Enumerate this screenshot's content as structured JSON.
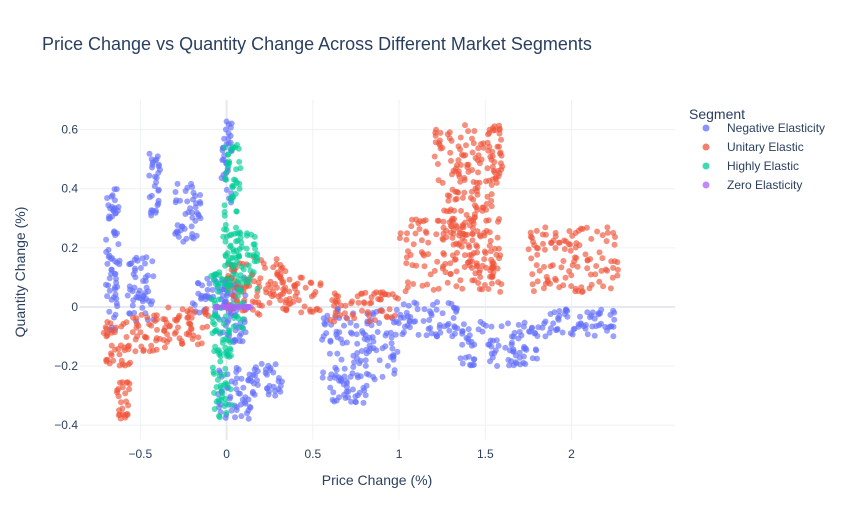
{
  "chart_data": {
    "type": "scatter",
    "title": "Price Change vs Quantity Change Across Different Market Segments",
    "xlabel": "Price Change (%)",
    "ylabel": "Quantity Change (%)",
    "xlim": [
      -0.85,
      2.6
    ],
    "ylim": [
      -0.45,
      0.7
    ],
    "xticks": [
      -0.5,
      0,
      0.5,
      1,
      1.5,
      2
    ],
    "xtick_labels": [
      "−0.5",
      "0",
      "0.5",
      "1",
      "1.5",
      "2"
    ],
    "yticks": [
      -0.4,
      -0.2,
      0,
      0.2,
      0.4,
      0.6
    ],
    "ytick_labels": [
      "−0.4",
      "−0.2",
      "0",
      "0.2",
      "0.4",
      "0.6"
    ],
    "grid": true,
    "legend": {
      "title": "Segment",
      "position": "top-right"
    },
    "series": [
      {
        "name": "Negative Elasticity",
        "color": "#636efa",
        "clusters": [
          {
            "x": [
              -0.7,
              -0.62
            ],
            "y": [
              -0.08,
              0.4
            ]
          },
          {
            "x": [
              -0.58,
              -0.42
            ],
            "y": [
              -0.05,
              0.17
            ]
          },
          {
            "x": [
              -0.45,
              -0.38
            ],
            "y": [
              0.3,
              0.52
            ]
          },
          {
            "x": [
              -0.3,
              -0.15
            ],
            "y": [
              0.22,
              0.42
            ]
          },
          {
            "x": [
              -0.2,
              0.05
            ],
            "y": [
              -0.02,
              0.1
            ]
          },
          {
            "x": [
              -0.05,
              0.12
            ],
            "y": [
              -0.12,
              0.1
            ]
          },
          {
            "x": [
              -0.03,
              0.03
            ],
            "y": [
              0.35,
              0.63
            ]
          },
          {
            "x": [
              -0.05,
              0.15
            ],
            "y": [
              -0.38,
              -0.2
            ]
          },
          {
            "x": [
              0.15,
              0.33
            ],
            "y": [
              -0.3,
              -0.18
            ]
          },
          {
            "x": [
              0.55,
              1.0
            ],
            "y": [
              -0.25,
              0.0
            ]
          },
          {
            "x": [
              0.6,
              0.82
            ],
            "y": [
              -0.33,
              -0.22
            ]
          },
          {
            "x": [
              1.0,
              1.35
            ],
            "y": [
              -0.1,
              0.02
            ]
          },
          {
            "x": [
              1.35,
              1.8
            ],
            "y": [
              -0.2,
              -0.05
            ]
          },
          {
            "x": [
              1.8,
              2.25
            ],
            "y": [
              -0.1,
              0.0
            ]
          }
        ]
      },
      {
        "name": "Unitary Elastic",
        "color": "#ef553b",
        "clusters": [
          {
            "x": [
              -0.72,
              -0.55
            ],
            "y": [
              -0.2,
              -0.05
            ]
          },
          {
            "x": [
              -0.64,
              -0.56
            ],
            "y": [
              -0.38,
              -0.25
            ]
          },
          {
            "x": [
              -0.55,
              -0.35
            ],
            "y": [
              -0.15,
              -0.02
            ]
          },
          {
            "x": [
              -0.35,
              -0.1
            ],
            "y": [
              -0.13,
              0.0
            ]
          },
          {
            "x": [
              0.0,
              0.35
            ],
            "y": [
              -0.03,
              0.17
            ]
          },
          {
            "x": [
              0.3,
              0.55
            ],
            "y": [
              -0.02,
              0.1
            ]
          },
          {
            "x": [
              0.6,
              1.0
            ],
            "y": [
              -0.05,
              0.05
            ]
          },
          {
            "x": [
              1.0,
              1.6
            ],
            "y": [
              0.05,
              0.3
            ]
          },
          {
            "x": [
              1.2,
              1.6
            ],
            "y": [
              0.4,
              0.62
            ]
          },
          {
            "x": [
              1.25,
              1.55
            ],
            "y": [
              0.1,
              0.4
            ]
          },
          {
            "x": [
              1.75,
              2.28
            ],
            "y": [
              0.05,
              0.27
            ]
          }
        ]
      },
      {
        "name": "Highly Elastic",
        "color": "#00cc96",
        "clusters": [
          {
            "x": [
              -0.1,
              0.1
            ],
            "y": [
              -0.12,
              0.12
            ]
          },
          {
            "x": [
              -0.08,
              0.03
            ],
            "y": [
              -0.38,
              -0.12
            ]
          },
          {
            "x": [
              -0.02,
              0.08
            ],
            "y": [
              0.12,
              0.55
            ]
          },
          {
            "x": [
              0.05,
              0.18
            ],
            "y": [
              0.05,
              0.25
            ]
          }
        ]
      },
      {
        "name": "Zero Elasticity",
        "color": "#ab63fa",
        "clusters": [
          {
            "x": [
              -0.08,
              0.15
            ],
            "y": [
              0.0,
              0.0
            ]
          }
        ]
      }
    ]
  }
}
